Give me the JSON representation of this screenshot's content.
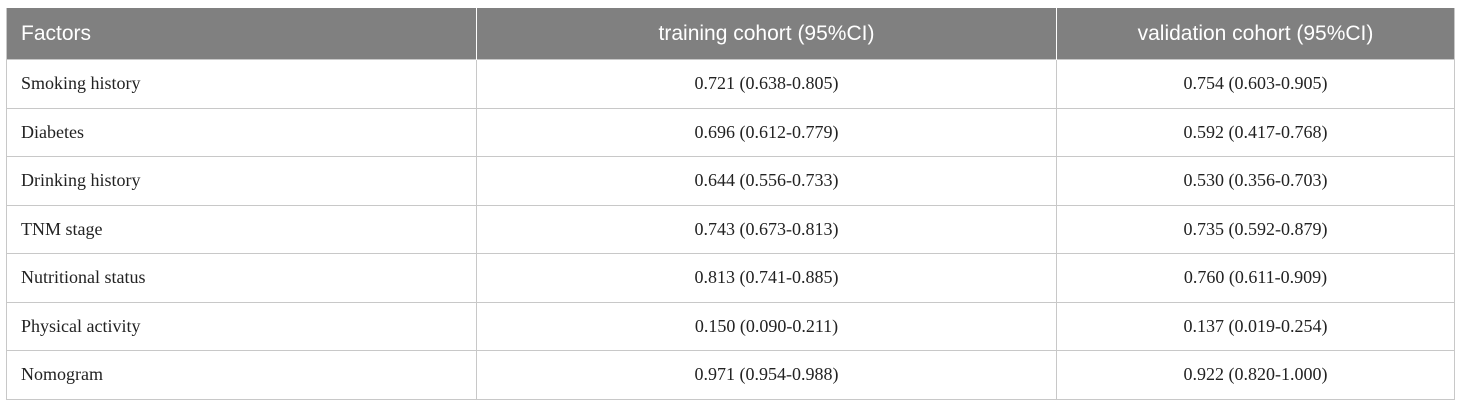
{
  "table": {
    "headers": [
      "Factors",
      "training cohort (95%CI)",
      "validation cohort (95%CI)"
    ],
    "rows": [
      [
        "Smoking history",
        "0.721 (0.638-0.805)",
        "0.754 (0.603-0.905)"
      ],
      [
        "Diabetes",
        "0.696 (0.612-0.779)",
        "0.592 (0.417-0.768)"
      ],
      [
        "Drinking history",
        "0.644 (0.556-0.733)",
        "0.530 (0.356-0.703)"
      ],
      [
        "TNM stage",
        "0.743 (0.673-0.813)",
        "0.735 (0.592-0.879)"
      ],
      [
        "Nutritional status",
        "0.813 (0.741-0.885)",
        "0.760 (0.611-0.909)"
      ],
      [
        "Physical activity",
        "0.150 (0.090-0.211)",
        "0.137 (0.019-0.254)"
      ],
      [
        "Nomogram",
        "0.971 (0.954-0.988)",
        "0.922 (0.820-1.000)"
      ]
    ]
  }
}
